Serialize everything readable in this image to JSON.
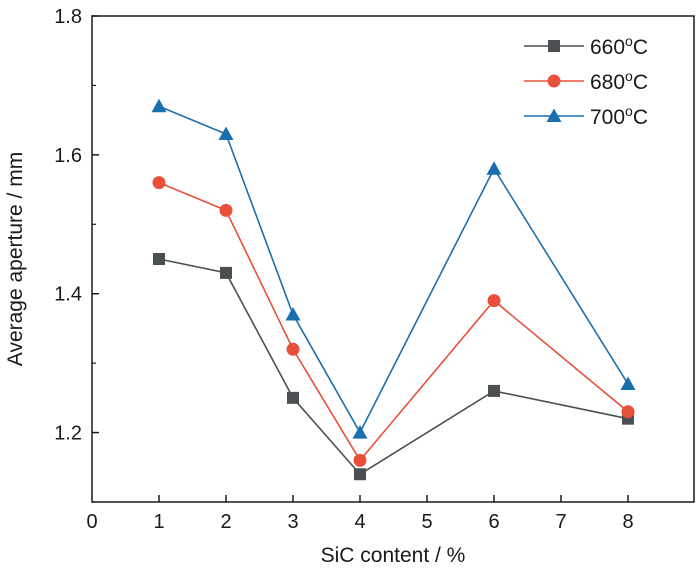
{
  "chart_data": {
    "type": "line",
    "xlabel": "SiC content / %",
    "ylabel": "Average aperture / mm",
    "x_ticks": [
      "0",
      "1",
      "2",
      "3",
      "4",
      "5",
      "6",
      "7",
      "8"
    ],
    "x_categories": [
      "1",
      "2",
      "3",
      "4",
      "6",
      "8"
    ],
    "y_ticks": [
      "1.2",
      "1.4",
      "1.6",
      "1.8"
    ],
    "ylim": [
      1.1,
      1.8
    ],
    "grid": false,
    "legend_position": "top-right",
    "series": [
      {
        "name_main": "660",
        "name_sup": "o",
        "name_unit": "C",
        "color": "#4a4f52",
        "marker": "square",
        "values": [
          1.45,
          1.43,
          1.25,
          1.14,
          1.26,
          1.22
        ]
      },
      {
        "name_main": "680",
        "name_sup": "o",
        "name_unit": "C",
        "color": "#e8503a",
        "marker": "circle",
        "values": [
          1.56,
          1.52,
          1.32,
          1.16,
          1.39,
          1.23
        ]
      },
      {
        "name_main": "700",
        "name_sup": "o",
        "name_unit": "C",
        "color": "#1a6faf",
        "marker": "triangle",
        "values": [
          1.67,
          1.63,
          1.37,
          1.2,
          1.58,
          1.27
        ]
      }
    ]
  }
}
